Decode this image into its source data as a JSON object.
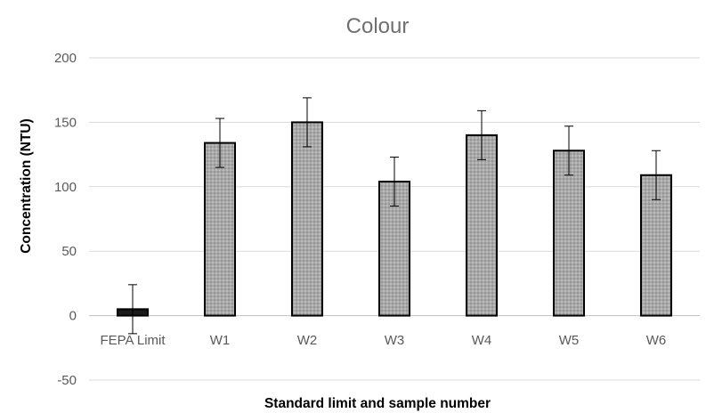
{
  "chart_data": {
    "type": "bar",
    "title": "Colour",
    "xlabel": "Standard limit and sample number",
    "ylabel": "Concentration (NTU)",
    "ylim": [
      -50,
      200
    ],
    "yticks": [
      -50,
      0,
      50,
      100,
      150,
      200
    ],
    "grid": true,
    "categories": [
      "FEPA Limit",
      "W1",
      "W2",
      "W3",
      "W4",
      "W5",
      "W6"
    ],
    "values": [
      5,
      134,
      150,
      104,
      140,
      128,
      109
    ],
    "error": [
      19,
      19,
      19,
      19,
      19,
      19,
      19
    ],
    "bar_colors": [
      "#1a1a1a",
      "#a6a6a6",
      "#a6a6a6",
      "#a6a6a6",
      "#a6a6a6",
      "#a6a6a6",
      "#a6a6a6"
    ],
    "bar_pattern": [
      "solid",
      "dotted",
      "dotted",
      "dotted",
      "dotted",
      "dotted",
      "dotted"
    ]
  }
}
